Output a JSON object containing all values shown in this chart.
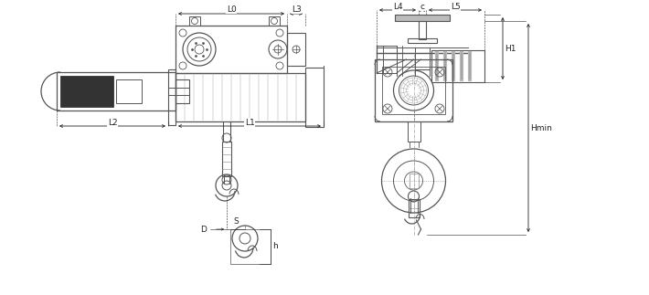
{
  "bg_color": "#ffffff",
  "line_color": "#555555",
  "dark_color": "#222222",
  "gray_color": "#888888",
  "dark_fill": "#333333",
  "light_gray": "#bbbbbb",
  "figsize": [
    7.1,
    3.23
  ],
  "dpi": 100,
  "labels": {
    "L0": "L0",
    "L3": "L3",
    "L1": "L1",
    "L2": "L2",
    "D": "D",
    "S": "S",
    "h": "h",
    "L4": "L4",
    "c": "c",
    "L5": "L5",
    "H1": "H1",
    "Hmin": "Hmin"
  }
}
